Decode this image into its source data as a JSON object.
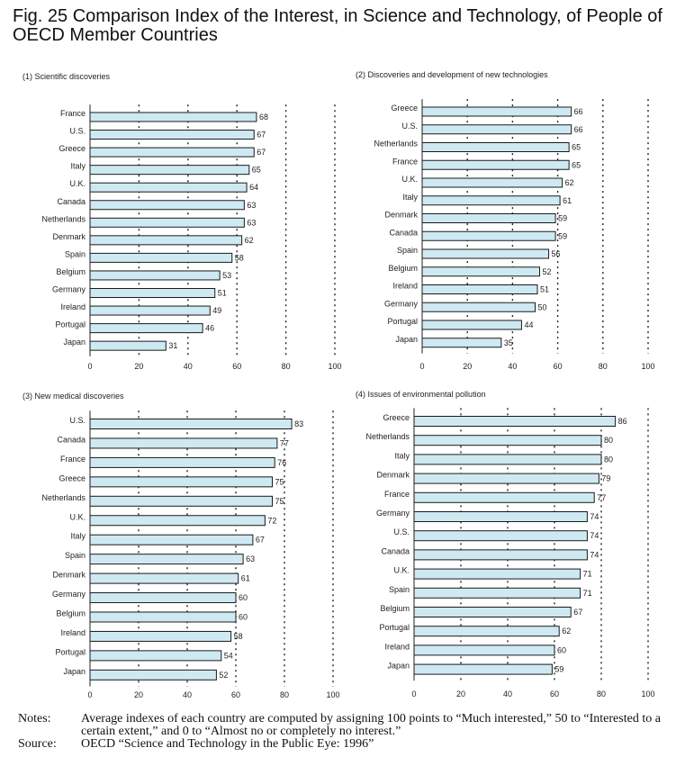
{
  "figure": {
    "title": "Fig. 25  Comparison Index of the Interest, in Science and Technology, of People of OECD Member Countries"
  },
  "chart_data": [
    {
      "type": "bar",
      "orientation": "horizontal",
      "title": "(1) Scientific discoveries",
      "categories": [
        "France",
        "U.S.",
        "Greece",
        "Italy",
        "U.K.",
        "Canada",
        "Netherlands",
        "Denmark",
        "Spain",
        "Belgium",
        "Germany",
        "Ireland",
        "Portugal",
        "Japan"
      ],
      "values": [
        68,
        67,
        67,
        65,
        64,
        63,
        63,
        62,
        58,
        53,
        51,
        49,
        46,
        31
      ],
      "xlim": [
        0,
        100
      ],
      "xticks": [
        0,
        20,
        40,
        60,
        80,
        100
      ],
      "grid": true,
      "bar_color": "#cfe9f3"
    },
    {
      "type": "bar",
      "orientation": "horizontal",
      "title": "(2) Discoveries and development of new technologies",
      "categories": [
        "Greece",
        "U.S.",
        "Netherlands",
        "France",
        "U.K.",
        "Italy",
        "Denmark",
        "Canada",
        "Spain",
        "Belgium",
        "Ireland",
        "Germany",
        "Portugal",
        "Japan"
      ],
      "values": [
        66,
        66,
        65,
        65,
        62,
        61,
        59,
        59,
        56,
        52,
        51,
        50,
        44,
        35
      ],
      "xlim": [
        0,
        100
      ],
      "xticks": [
        0,
        20,
        40,
        60,
        80,
        100
      ],
      "grid": true,
      "bar_color": "#cfe9f3"
    },
    {
      "type": "bar",
      "orientation": "horizontal",
      "title": "(3) New medical discoveries",
      "categories": [
        "U.S.",
        "Canada",
        "France",
        "Greece",
        "Netherlands",
        "U.K.",
        "Italy",
        "Spain",
        "Denmark",
        "Germany",
        "Belgium",
        "Ireland",
        "Portugal",
        "Japan"
      ],
      "values": [
        83,
        77,
        76,
        75,
        75,
        72,
        67,
        63,
        61,
        60,
        60,
        58,
        54,
        52
      ],
      "xlim": [
        0,
        100
      ],
      "xticks": [
        0,
        20,
        40,
        60,
        80,
        100
      ],
      "grid": true,
      "bar_color": "#cfe9f3"
    },
    {
      "type": "bar",
      "orientation": "horizontal",
      "title": "(4) Issues of environmental pollution",
      "categories": [
        "Greece",
        "Netherlands",
        "Italy",
        "Denmark",
        "France",
        "Germany",
        "U.S.",
        "Canada",
        "U.K.",
        "Spain",
        "Belgium",
        "Portugal",
        "Ireland",
        "Japan"
      ],
      "values": [
        86,
        80,
        80,
        79,
        77,
        74,
        74,
        74,
        71,
        71,
        67,
        62,
        60,
        59
      ],
      "xlim": [
        0,
        100
      ],
      "xticks": [
        0,
        20,
        40,
        60,
        80,
        100
      ],
      "grid": true,
      "bar_color": "#cfe9f3"
    }
  ],
  "notes": {
    "notes_label": "Notes:",
    "notes_text": "Average indexes of each country are computed by assigning 100 points to “Much interested,” 50 to “Interested to a certain extent,” and 0 to “Almost no or completely no interest.”",
    "source_label": "Source:",
    "source_text": "OECD “Science and Technology in the Public Eye: 1996”"
  }
}
